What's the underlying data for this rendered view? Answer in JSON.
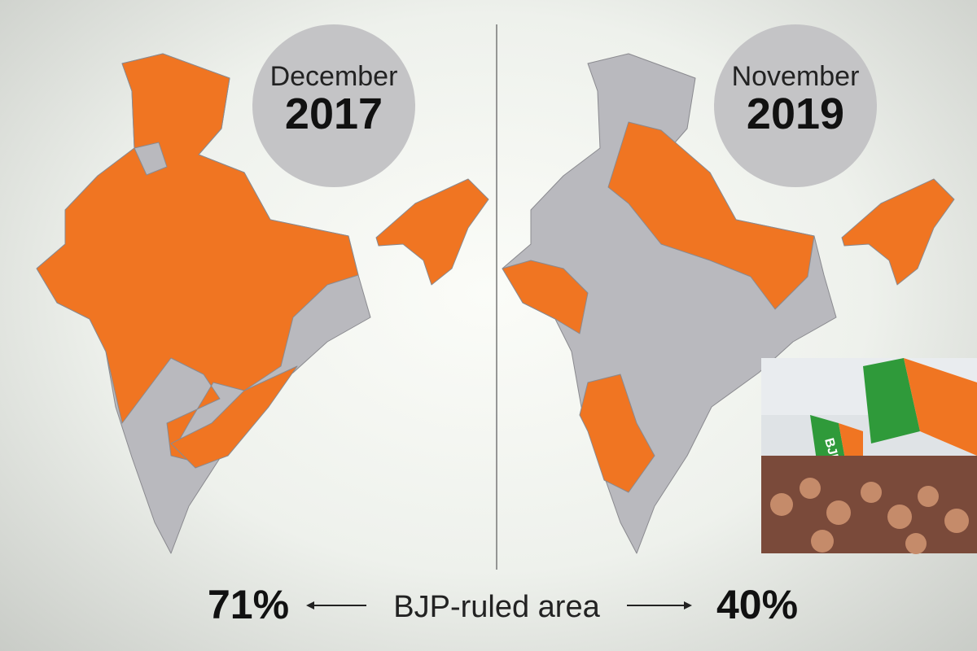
{
  "left_panel": {
    "month": "December",
    "year": "2017",
    "share": "71%"
  },
  "right_panel": {
    "month": "November",
    "year": "2019",
    "share": "40%"
  },
  "caption": "BJP-ruled area",
  "photo": {
    "flag_text": "BJP"
  }
}
